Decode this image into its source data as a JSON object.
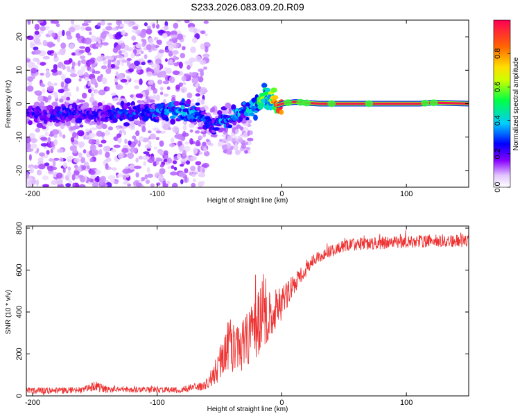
{
  "title": "S233.2026.083.09.20.R09",
  "chart_data": [
    {
      "type": "heatmap",
      "xlabel": "Height of straight line (km)",
      "ylabel": "Frequency (Hz)",
      "xlim": [
        -205,
        150
      ],
      "ylim": [
        -25,
        25
      ],
      "xticks": [
        -200,
        -100,
        0,
        100
      ],
      "yticks": [
        -20,
        -10,
        0,
        10,
        20
      ],
      "colorbar": {
        "label": "Normalized spectral amplitude",
        "ticks": [
          0.0,
          0.2,
          0.4,
          0.6,
          0.8
        ],
        "range": [
          0,
          1
        ]
      },
      "ridge": {
        "x": [
          -205,
          -190,
          -170,
          -150,
          -130,
          -110,
          -95,
          -80,
          -70,
          -62,
          -55,
          -48,
          -40,
          -30,
          -22,
          -16,
          -12,
          -8,
          -4,
          0,
          5,
          10,
          15,
          20,
          30,
          50,
          80,
          110,
          120,
          150
        ],
        "hz": [
          -3,
          -3,
          -3,
          -3,
          -3,
          -3,
          -2,
          -2,
          -3,
          -5,
          -7,
          -5,
          -4,
          -2,
          -1,
          1,
          2,
          1,
          -0.5,
          0,
          0.3,
          0.5,
          0.4,
          0.2,
          0,
          0,
          0,
          0,
          0.3,
          0
        ],
        "amp": [
          0.25,
          0.25,
          0.3,
          0.25,
          0.3,
          0.3,
          0.35,
          0.4,
          0.35,
          0.3,
          0.3,
          0.35,
          0.4,
          0.4,
          0.45,
          0.55,
          0.6,
          0.7,
          0.85,
          0.9,
          0.95,
          0.95,
          0.95,
          0.95,
          0.95,
          0.95,
          0.95,
          0.95,
          0.95,
          0.95
        ]
      }
    },
    {
      "type": "line",
      "xlabel": "Height of straight line (km)",
      "ylabel": "SNR (10 * v/v)",
      "xlim": [
        -205,
        150
      ],
      "ylim": [
        0,
        810
      ],
      "xticks": [
        -200,
        -100,
        0,
        100
      ],
      "yticks": [
        0,
        200,
        400,
        600,
        800
      ],
      "series": [
        {
          "name": "SNR",
          "color": "#ee3333",
          "x": [
            -205,
            -180,
            -160,
            -150,
            -140,
            -120,
            -100,
            -80,
            -70,
            -62,
            -55,
            -48,
            -44,
            -40,
            -35,
            -30,
            -25,
            -20,
            -15,
            -10,
            -5,
            0,
            5,
            10,
            15,
            20,
            30,
            40,
            50,
            60,
            80,
            100,
            120,
            150
          ],
          "y": [
            25,
            25,
            28,
            45,
            30,
            30,
            30,
            30,
            40,
            50,
            90,
            180,
            260,
            230,
            220,
            250,
            300,
            340,
            420,
            380,
            400,
            440,
            490,
            530,
            570,
            620,
            660,
            690,
            715,
            725,
            730,
            735,
            740,
            740
          ],
          "noise": [
            15,
            15,
            15,
            25,
            15,
            15,
            15,
            15,
            20,
            20,
            50,
            90,
            140,
            120,
            110,
            130,
            150,
            160,
            180,
            150,
            110,
            80,
            60,
            50,
            40,
            35,
            30,
            30,
            30,
            30,
            30,
            30,
            30,
            30
          ]
        }
      ]
    }
  ]
}
